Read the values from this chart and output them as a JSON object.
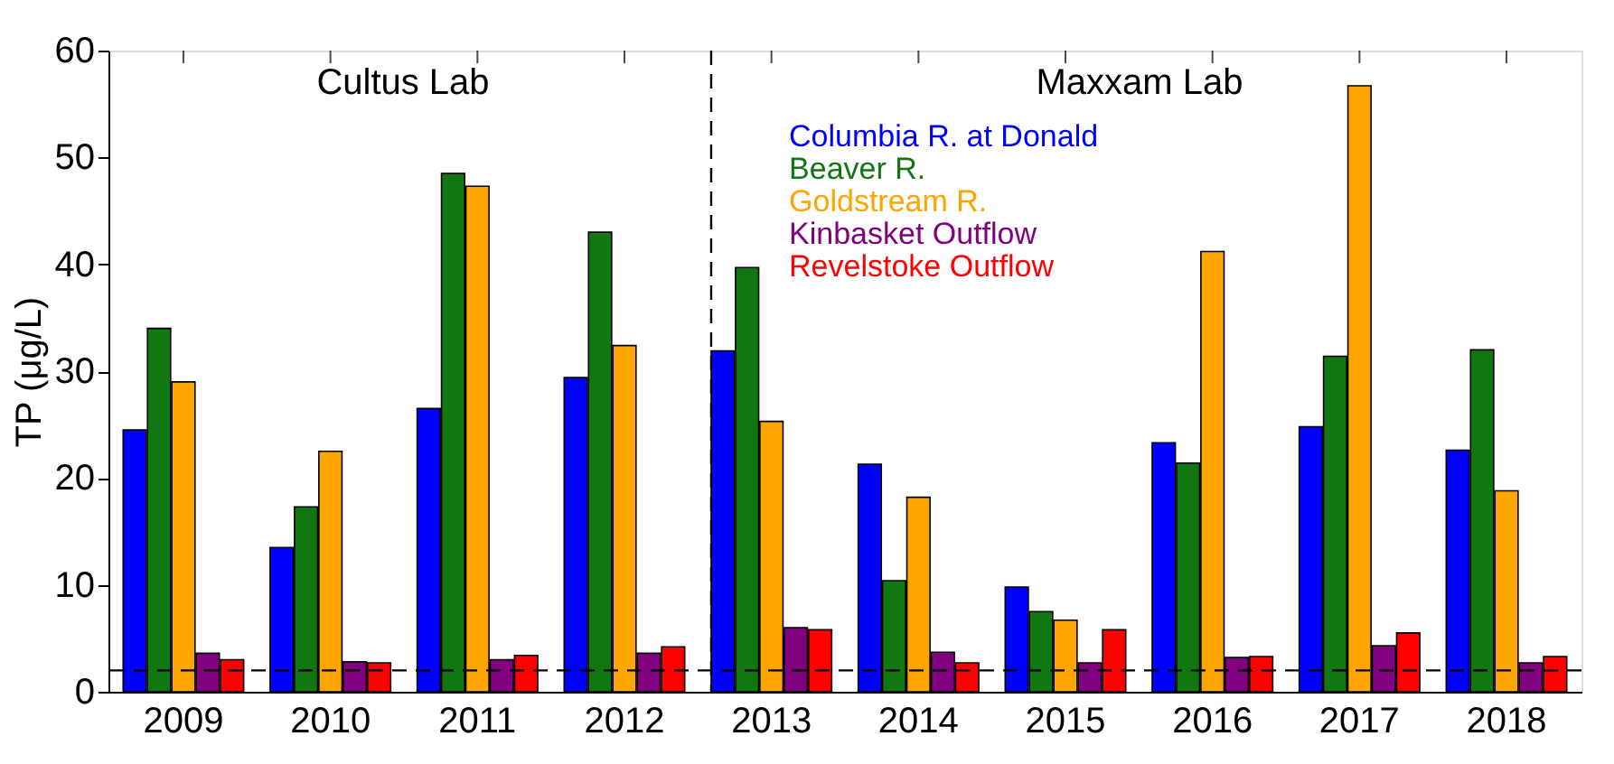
{
  "chart_data": {
    "type": "bar",
    "categories": [
      "2009",
      "2010",
      "2011",
      "2012",
      "2013",
      "2014",
      "2015",
      "2016",
      "2017",
      "2018"
    ],
    "series": [
      {
        "name": "Columbia R. at Donald",
        "color": "#0000ff",
        "values": [
          24.5,
          13.5,
          26.5,
          29.4,
          31.9,
          21.3,
          9.8,
          23.3,
          24.8,
          22.6
        ]
      },
      {
        "name": "Beaver R.",
        "color": "#117711",
        "values": [
          34,
          17.3,
          48.5,
          43,
          39.7,
          10.4,
          7.5,
          21.4,
          31.4,
          32
        ]
      },
      {
        "name": "Goldstream R.",
        "color": "#ffa500",
        "values": [
          29,
          22.5,
          47.3,
          32.4,
          25.3,
          18.2,
          6.7,
          41.2,
          56.7,
          18.8
        ]
      },
      {
        "name": "Kinbasket Outflow",
        "color": "#800080",
        "values": [
          3.6,
          2.8,
          3.0,
          3.6,
          6.0,
          3.7,
          2.7,
          3.2,
          4.3,
          2.7
        ]
      },
      {
        "name": "Revelstoke Outflow",
        "color": "#ff0000",
        "values": [
          3.0,
          2.7,
          3.4,
          4.2,
          5.8,
          2.7,
          5.8,
          3.3,
          5.5,
          3.3
        ]
      }
    ],
    "ylabel": "TP (μg/L)",
    "ylim": [
      0,
      60
    ],
    "yticks": [
      0,
      10,
      20,
      30,
      40,
      50,
      60
    ],
    "annotations": [
      "Cultus Lab",
      "Maxxam Lab"
    ],
    "ref_lines": [
      {
        "axis": "y",
        "value": 2,
        "line_style": "dashed"
      },
      {
        "axis": "x",
        "value": "2013",
        "line_style": "dashed"
      }
    ],
    "legend": "top",
    "grid": false
  }
}
